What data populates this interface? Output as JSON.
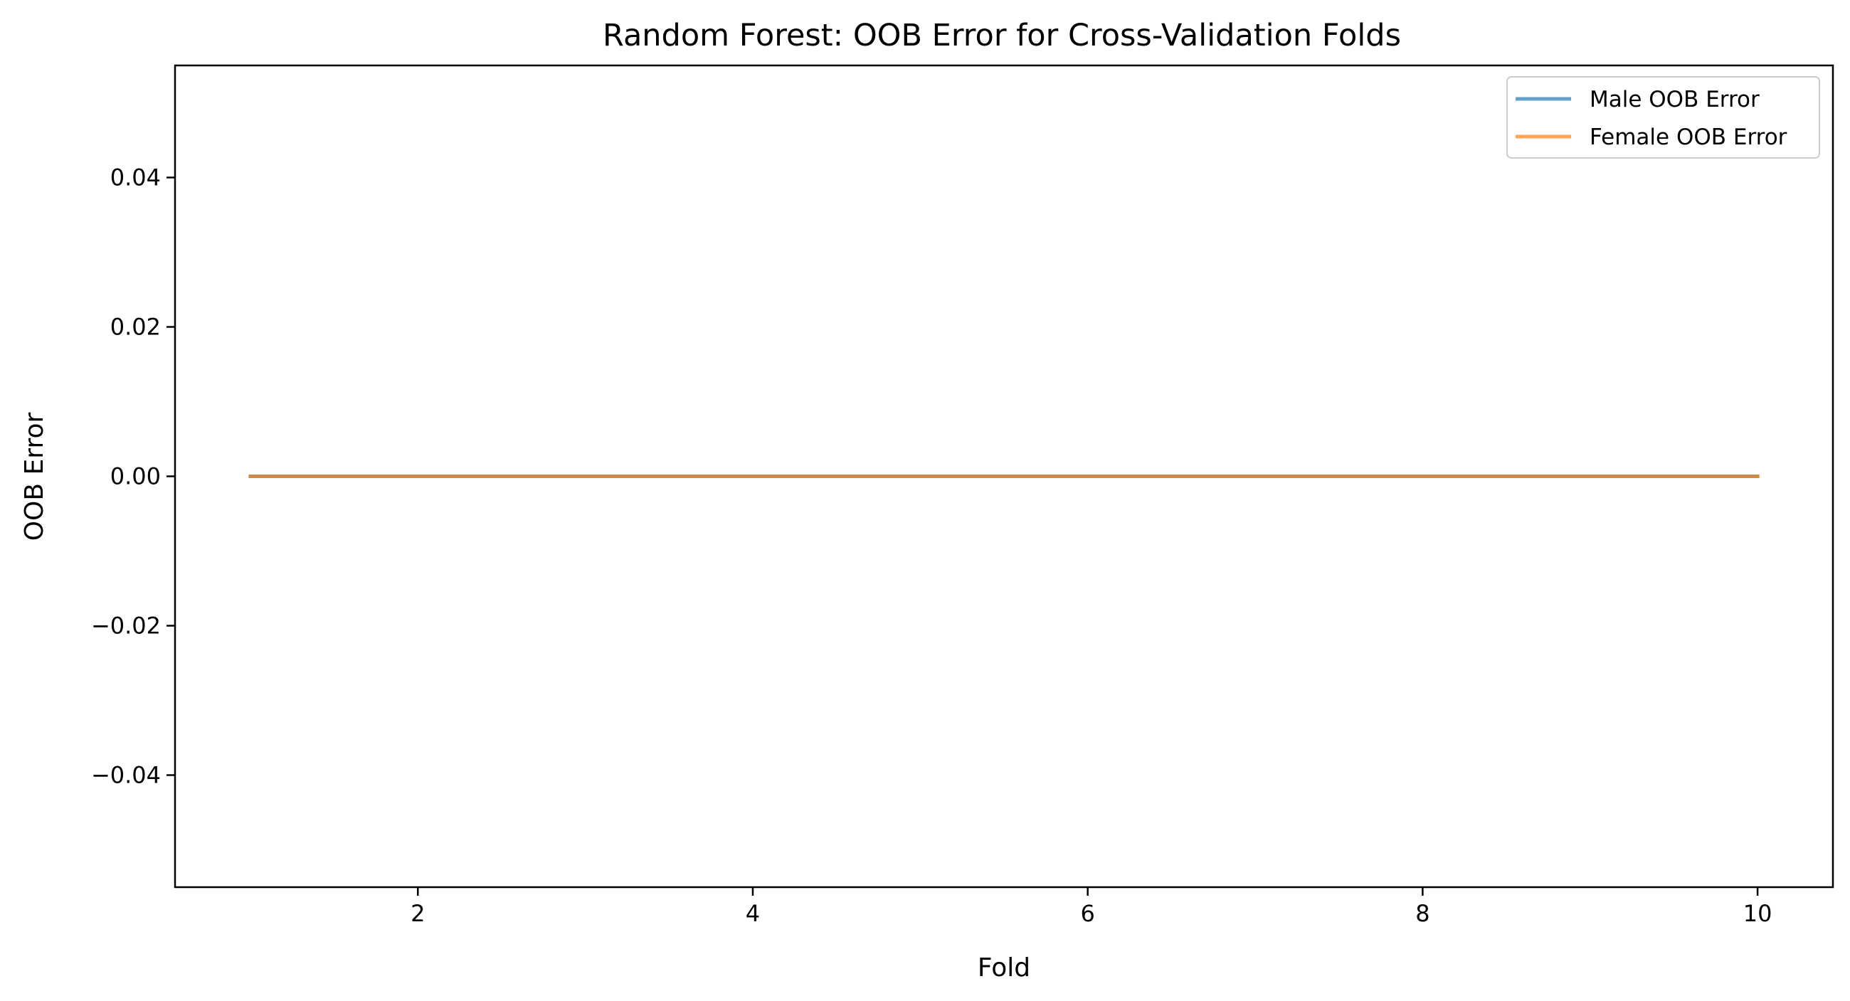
{
  "chart_data": {
    "type": "line",
    "title": "Random Forest: OOB Error for Cross-Validation Folds",
    "xlabel": "Fold",
    "ylabel": "OOB Error",
    "x": [
      1,
      2,
      3,
      4,
      5,
      6,
      7,
      8,
      9,
      10
    ],
    "xlim": [
      0.55,
      10.45
    ],
    "ylim": [
      -0.055,
      0.055
    ],
    "x_ticks": [
      2,
      4,
      6,
      8,
      10
    ],
    "x_tick_labels": [
      "2",
      "4",
      "6",
      "8",
      "10"
    ],
    "y_ticks": [
      0.04,
      0.02,
      0.0,
      -0.02,
      -0.04
    ],
    "y_tick_labels": [
      "0.04",
      "0.02",
      "0.00",
      "−0.02",
      "−0.04"
    ],
    "grid": false,
    "legend_position": "top-right",
    "series": [
      {
        "name": "Male OOB Error",
        "color": "#1f77b4",
        "values": [
          0,
          0,
          0,
          0,
          0,
          0,
          0,
          0,
          0,
          0
        ]
      },
      {
        "name": "Female OOB Error",
        "color": "#ff7f0e",
        "values": [
          0,
          0,
          0,
          0,
          0,
          0,
          0,
          0,
          0,
          0
        ]
      }
    ]
  }
}
